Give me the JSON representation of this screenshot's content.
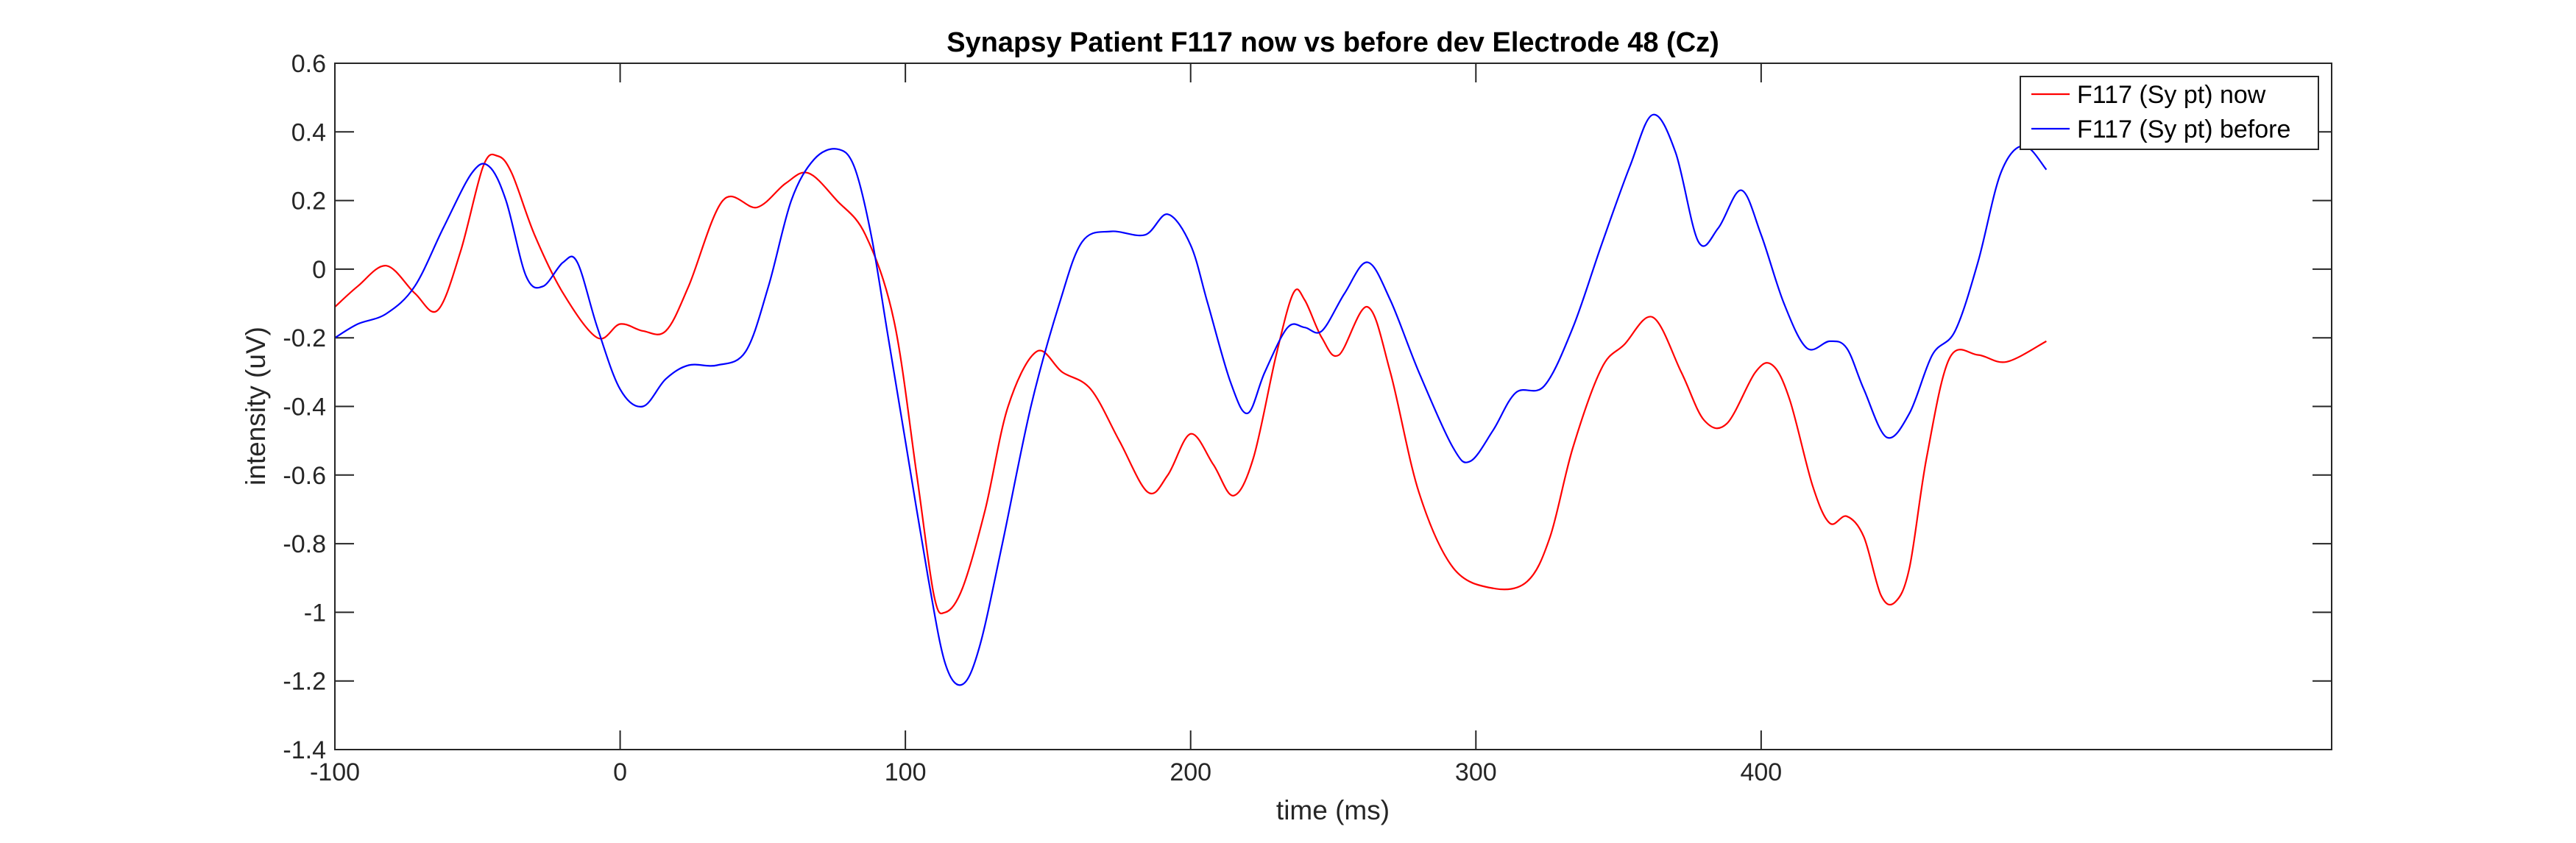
{
  "chart_data": {
    "type": "line",
    "title": "Synapsy Patient F117 now vs before dev Electrode 48 (Cz)",
    "xlabel": "time (ms)",
    "ylabel": "intensity (uV)",
    "xlim": [
      -100,
      600
    ],
    "ylim": [
      -1.4,
      0.6
    ],
    "xticks": [
      -100,
      0,
      100,
      200,
      300,
      400
    ],
    "xtick_labels": [
      "-100",
      "0",
      "100",
      "200",
      "300",
      "400"
    ],
    "yticks": [
      0.6,
      0.4,
      0.2,
      0,
      -0.2,
      -0.4,
      -0.6,
      -0.8,
      -1,
      -1.2,
      -1.4
    ],
    "ytick_labels": [
      "0.6",
      "0.4",
      "0.2",
      "0",
      "-0.2",
      "-0.4",
      "-0.6",
      "-0.8",
      "-1",
      "-1.2",
      "-1.4"
    ],
    "grid": false,
    "legend_position": "top-right",
    "series": [
      {
        "name": "F117 (Sy pt) now",
        "color": "#ff0000",
        "x": [
          -100,
          -92,
          -82,
          -72,
          -64,
          -56,
          -48,
          -43,
          -38,
          -30,
          -20,
          -8,
          0,
          8,
          16,
          24,
          36,
          48,
          58,
          66,
          76,
          86,
          96,
          104,
          110,
          114,
          120,
          128,
          136,
          146,
          155,
          165,
          175,
          185,
          192,
          200,
          208,
          215,
          222,
          230,
          236,
          240,
          246,
          252,
          262,
          270,
          280,
          292,
          306,
          318,
          326,
          334,
          344,
          352,
          362,
          372,
          380,
          388,
          398,
          404,
          410,
          418,
          424,
          430,
          436,
          442,
          447,
          452,
          458,
          466,
          476,
          486,
          500
        ],
        "y": [
          -0.11,
          -0.05,
          0.01,
          -0.07,
          -0.12,
          0.05,
          0.3,
          0.33,
          0.28,
          0.1,
          -0.07,
          -0.2,
          -0.16,
          -0.18,
          -0.18,
          -0.05,
          0.2,
          0.18,
          0.25,
          0.28,
          0.2,
          0.1,
          -0.15,
          -0.6,
          -0.95,
          -1.0,
          -0.93,
          -0.7,
          -0.4,
          -0.24,
          -0.3,
          -0.35,
          -0.5,
          -0.65,
          -0.6,
          -0.48,
          -0.57,
          -0.66,
          -0.55,
          -0.25,
          -0.07,
          -0.09,
          -0.2,
          -0.25,
          -0.11,
          -0.3,
          -0.65,
          -0.87,
          -0.93,
          -0.91,
          -0.78,
          -0.52,
          -0.29,
          -0.22,
          -0.14,
          -0.3,
          -0.44,
          -0.45,
          -0.3,
          -0.28,
          -0.38,
          -0.63,
          -0.74,
          -0.72,
          -0.78,
          -0.95,
          -0.97,
          -0.87,
          -0.55,
          -0.26,
          -0.25,
          -0.27,
          -0.21
        ]
      },
      {
        "name": "F117 (Sy pt) before",
        "color": "#0000ff",
        "x": [
          -100,
          -92,
          -82,
          -72,
          -62,
          -52,
          -46,
          -40,
          -33,
          -27,
          -20,
          -15,
          -8,
          0,
          8,
          16,
          24,
          34,
          44,
          52,
          60,
          68,
          76,
          82,
          88,
          94,
          100,
          108,
          114,
          120,
          126,
          134,
          144,
          154,
          162,
          172,
          184,
          192,
          200,
          206,
          214,
          220,
          226,
          234,
          240,
          246,
          254,
          262,
          270,
          280,
          292,
          298,
          306,
          314,
          324,
          334,
          344,
          354,
          362,
          370,
          378,
          385,
          393,
          400,
          408,
          416,
          424,
          430,
          436,
          444,
          452,
          460,
          468,
          476,
          484,
          492,
          500
        ],
        "y": [
          -0.2,
          -0.16,
          -0.13,
          -0.05,
          0.12,
          0.28,
          0.3,
          0.2,
          -0.02,
          -0.05,
          0.02,
          0.02,
          -0.17,
          -0.35,
          -0.4,
          -0.32,
          -0.28,
          -0.28,
          -0.24,
          -0.05,
          0.2,
          0.32,
          0.35,
          0.3,
          0.1,
          -0.2,
          -0.5,
          -0.9,
          -1.15,
          -1.21,
          -1.1,
          -0.8,
          -0.4,
          -0.1,
          0.08,
          0.11,
          0.1,
          0.16,
          0.07,
          -0.1,
          -0.33,
          -0.42,
          -0.3,
          -0.17,
          -0.17,
          -0.18,
          -0.07,
          0.02,
          -0.09,
          -0.3,
          -0.52,
          -0.56,
          -0.47,
          -0.36,
          -0.34,
          -0.17,
          0.07,
          0.3,
          0.45,
          0.34,
          0.08,
          0.12,
          0.23,
          0.1,
          -0.1,
          -0.23,
          -0.21,
          -0.23,
          -0.35,
          -0.49,
          -0.42,
          -0.25,
          -0.18,
          0.02,
          0.28,
          0.36,
          0.29
        ]
      }
    ]
  }
}
